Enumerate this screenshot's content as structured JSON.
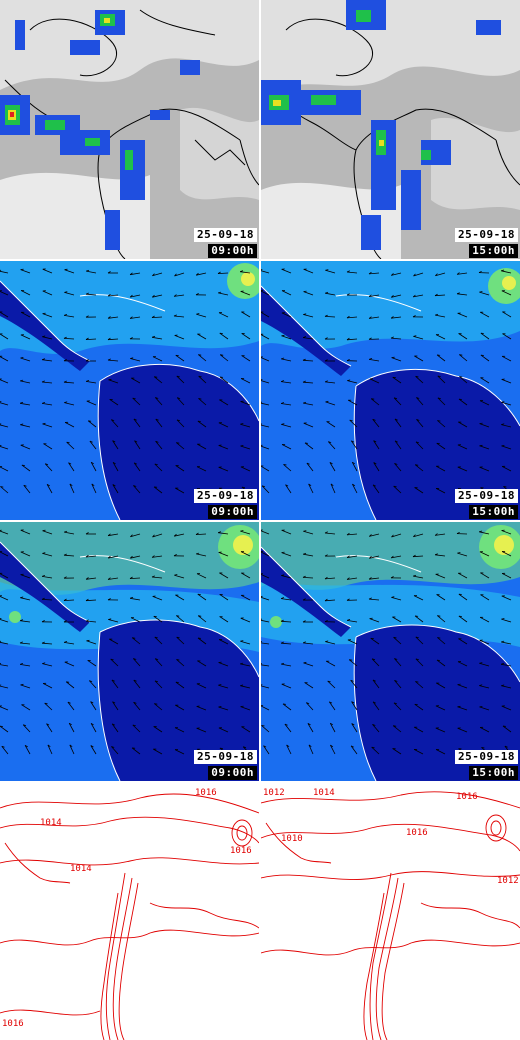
{
  "colors": {
    "satellite_bg": "#b9b9b9",
    "cloud_light": "#ececec",
    "rain_blue": "#1f4fe0",
    "rain_green": "#1fc04a",
    "rain_yellow": "#e8e020",
    "rain_red": "#e02020",
    "wind_dark": "#0a1aa8",
    "wind_mid": "#1a6ef0",
    "wind_light": "#27b6f0",
    "wind_green": "#6fe07f",
    "wind_yellow": "#e6f050",
    "coast_dark": "#000000",
    "coast_light": "#ffffff",
    "isobar": "#e00000"
  },
  "rows": [
    {
      "name": "precipitation-satellite",
      "panels": [
        {
          "date": "25-09-18",
          "time": "09:00h"
        },
        {
          "date": "25-09-18",
          "time": "15:00h"
        }
      ]
    },
    {
      "name": "surface-wind",
      "panels": [
        {
          "date": "25-09-18",
          "time": "09:00h"
        },
        {
          "date": "25-09-18",
          "time": "15:00h"
        }
      ]
    },
    {
      "name": "upper-wind",
      "panels": [
        {
          "date": "25-09-18",
          "time": "09:00h"
        },
        {
          "date": "25-09-18",
          "time": "15:00h"
        }
      ]
    },
    {
      "name": "sea-level-pressure",
      "isobar_labels_left": [
        "1016",
        "1014",
        "1016",
        "1016",
        "1014"
      ],
      "isobar_labels_right": [
        "1014",
        "1012",
        "1016",
        "1016",
        "1010",
        "1012"
      ]
    }
  ]
}
